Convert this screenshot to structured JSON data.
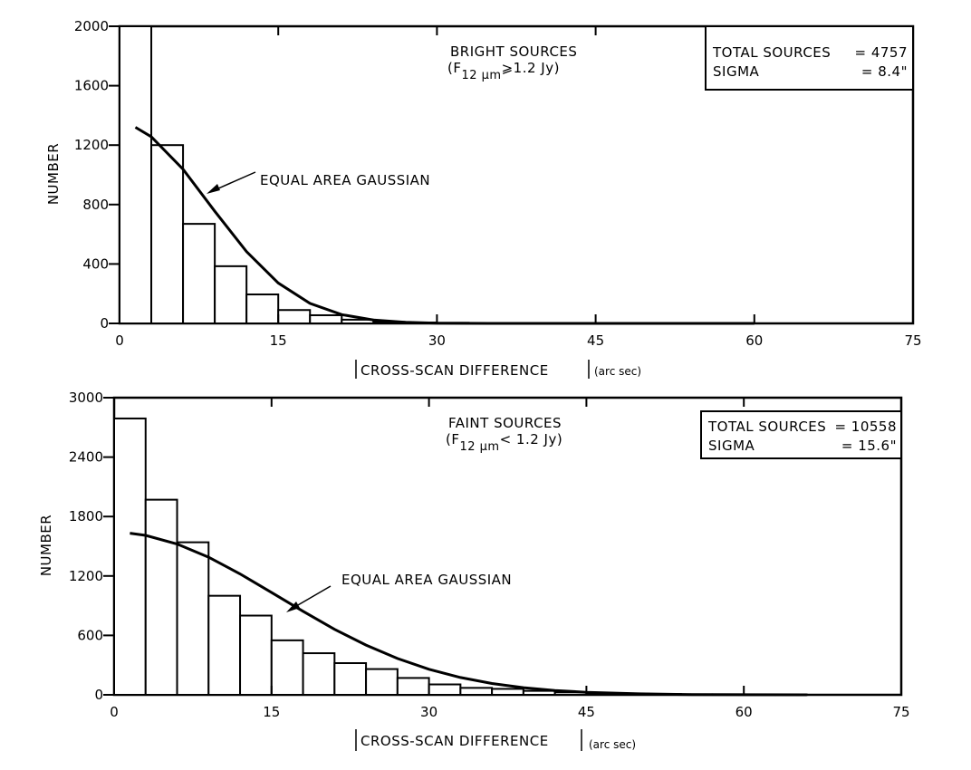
{
  "chart_data": [
    {
      "type": "bar",
      "title": "BRIGHT SOURCES",
      "condition": {
        "open": "(F",
        "sub": "12 μm",
        "rest": "⩾1.2 Jy)"
      },
      "xlabel": "CROSS-SCAN DIFFERENCE",
      "xlabel_unit": "(arc sec)",
      "ylabel": "NUMBER",
      "xlim": [
        0,
        75
      ],
      "ylim": [
        0,
        2000
      ],
      "xticks": [
        "0",
        "15",
        "30",
        "45",
        "60",
        "75"
      ],
      "yticks": [
        "0",
        "400",
        "800",
        "1200",
        "1600",
        "2000"
      ],
      "bin_width": 3,
      "values": [
        2000,
        1200,
        670,
        385,
        195,
        90,
        55,
        25,
        10,
        6,
        4,
        3,
        2,
        2,
        2,
        2,
        2,
        1
      ],
      "curve_label": "EQUAL AREA GAUSSIAN",
      "curve": {
        "x": [
          1.5,
          3,
          6,
          9,
          12,
          15,
          18,
          21,
          24,
          27,
          30,
          35,
          40,
          50,
          60
        ],
        "y": [
          1320,
          1257,
          1038,
          755,
          483,
          272,
          135,
          59,
          23,
          8,
          2,
          0,
          0,
          0,
          0
        ]
      },
      "stats": [
        {
          "label": "TOTAL SOURCES",
          "value": "= 4757"
        },
        {
          "label": "SIGMA",
          "value": "= 8.4\""
        }
      ],
      "grid": false
    },
    {
      "type": "bar",
      "title": "FAINT SOURCES",
      "condition": {
        "open": "(F",
        "sub": "12 μm",
        "rest": "< 1.2 Jy)"
      },
      "xlabel": "CROSS-SCAN DIFFERENCE",
      "xlabel_unit": "(arc sec)",
      "ylabel": "NUMBER",
      "xlim": [
        0,
        75
      ],
      "ylim": [
        0,
        3000
      ],
      "xticks": [
        "0",
        "15",
        "30",
        "45",
        "60",
        "75"
      ],
      "yticks": [
        "0",
        "600",
        "1200",
        "1800",
        "2400",
        "3000"
      ],
      "bin_width": 3,
      "values": [
        2790,
        1970,
        1540,
        1000,
        800,
        550,
        420,
        320,
        260,
        170,
        105,
        70,
        60,
        40,
        25,
        15,
        10,
        8,
        5,
        5,
        3,
        3
      ],
      "curve_label": "EQUAL AREA GAUSSIAN",
      "curve": {
        "x": [
          1.5,
          3,
          6,
          9,
          12,
          15,
          18,
          21,
          24,
          27,
          30,
          33,
          36,
          39,
          42,
          45,
          50,
          55,
          60,
          66
        ],
        "y": [
          1632,
          1610,
          1523,
          1389,
          1221,
          1033,
          843,
          661,
          502,
          367,
          258,
          175,
          114,
          72,
          44,
          26,
          10,
          3,
          1,
          0
        ]
      },
      "stats": [
        {
          "label": "TOTAL SOURCES",
          "value": "= 10558"
        },
        {
          "label": "SIGMA",
          "value": "= 15.6\""
        }
      ],
      "grid": false
    }
  ]
}
